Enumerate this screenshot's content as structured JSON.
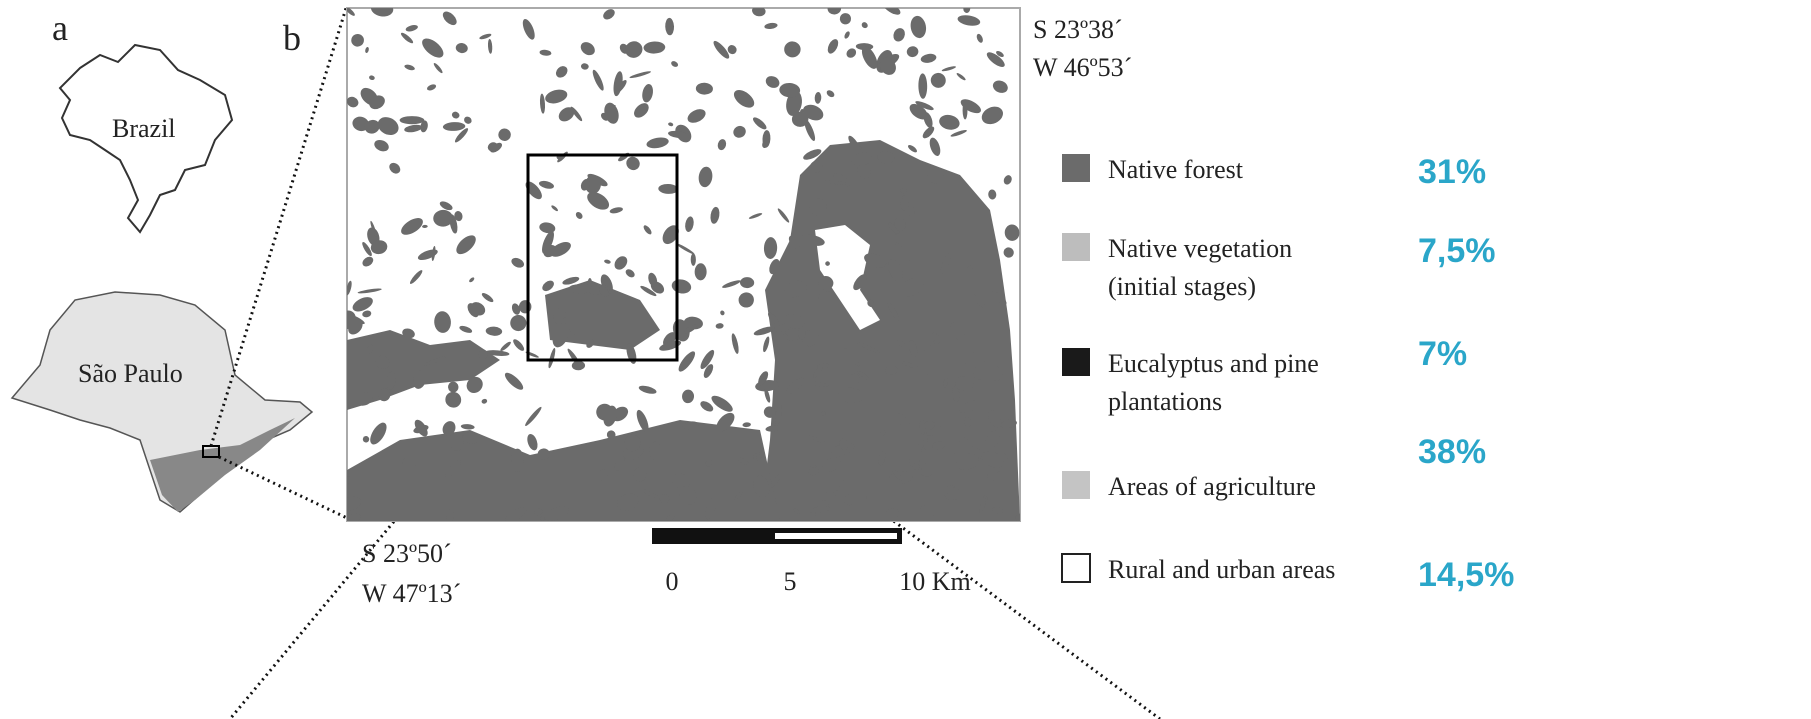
{
  "panels": {
    "a": "a",
    "b": "b"
  },
  "inset_labels": {
    "country": "Brazil",
    "state": "São Paulo"
  },
  "coordinates": {
    "top_right": [
      "S 23º38´",
      "W 46º53´"
    ],
    "bottom_left": [
      "S 23º50´",
      "W 47º13´"
    ]
  },
  "scale_bar": {
    "labels": [
      "0",
      "5",
      "10 Km"
    ]
  },
  "legend": [
    {
      "label": [
        "Native forest"
      ],
      "share": "31%"
    },
    {
      "label": [
        "Native vegetation",
        "(initial stages)"
      ],
      "share": "7,5%"
    },
    {
      "label": [
        "Eucalyptus and pine",
        "plantations"
      ],
      "share": "7%"
    },
    {
      "label": [
        "Areas of agriculture"
      ],
      "share": "38%"
    },
    {
      "label": [
        "Rural and urban areas"
      ],
      "share": "14,5%"
    }
  ]
}
